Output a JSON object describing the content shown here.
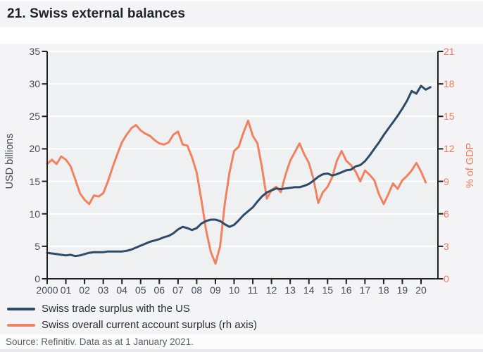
{
  "page": {
    "title": "21. Swiss external balances",
    "source": "Source: Refinitiv. Data as at 1 January 2021."
  },
  "colors": {
    "panel_bg": "#f4f4f6",
    "plot_bg": "#eff0f2",
    "gridline": "#ffffff",
    "axis": "#202023",
    "navy_series": "#2e4a69",
    "orange_series": "#f0825f",
    "left_tick_text": "#414b59",
    "right_tick_text": "#ef7c58",
    "title_text": "#1d222a",
    "source_text": "#5b6168"
  },
  "legend": [
    {
      "label": "Swiss trade surplus with the US",
      "color": "#2e4a69"
    },
    {
      "label": "Swiss overall current account surplus (rh axis)",
      "color": "#f0825f"
    }
  ],
  "chart_data": {
    "type": "line",
    "title": "21. Swiss external balances",
    "ylabel_left": "USD billions",
    "ylabel_right": "% of GDP",
    "grid": "horizontal-white-on-gray",
    "legend_position": "bottom-left",
    "y_left": {
      "min": 0,
      "max": 35,
      "ticks": [
        0,
        5,
        10,
        15,
        20,
        25,
        30,
        35
      ]
    },
    "y_right": {
      "min": 0,
      "max": 21,
      "ticks": [
        0,
        3,
        6,
        9,
        12,
        15,
        18,
        21
      ]
    },
    "x_axis": {
      "start_year": 2000,
      "end_year": 2020,
      "tick_labels": [
        "2000",
        "01",
        "02",
        "03",
        "04",
        "05",
        "06",
        "07",
        "08",
        "09",
        "10",
        "11",
        "12",
        "13",
        "14",
        "15",
        "16",
        "17",
        "18",
        "19",
        "20"
      ]
    },
    "series": [
      {
        "name": "Swiss trade surplus with the US",
        "axis": "left",
        "unit": "USD billions",
        "color": "#2e4a69",
        "x_start": 2000.0,
        "x_step": 0.25,
        "values": [
          4.0,
          3.9,
          3.8,
          3.7,
          3.6,
          3.7,
          3.5,
          3.6,
          3.8,
          4.0,
          4.1,
          4.1,
          4.1,
          4.2,
          4.2,
          4.2,
          4.2,
          4.3,
          4.5,
          4.8,
          5.1,
          5.4,
          5.7,
          5.9,
          6.1,
          6.4,
          6.6,
          7.0,
          7.6,
          8.0,
          7.8,
          7.5,
          7.8,
          8.5,
          8.9,
          9.1,
          9.1,
          8.9,
          8.4,
          8.0,
          8.3,
          9.0,
          9.8,
          10.4,
          11.0,
          11.9,
          12.7,
          13.3,
          13.6,
          13.9,
          13.8,
          13.9,
          14.0,
          14.1,
          14.1,
          14.3,
          14.6,
          15.1,
          15.7,
          16.1,
          16.2,
          15.9,
          16.1,
          16.4,
          16.7,
          16.8,
          17.3,
          17.5,
          18.1,
          19.0,
          20.0,
          21.0,
          22.1,
          23.1,
          24.1,
          25.1,
          26.2,
          27.4,
          28.9,
          28.5,
          29.7,
          29.1,
          29.5
        ]
      },
      {
        "name": "Swiss overall current account surplus (rh axis)",
        "axis": "right",
        "unit": "% of GDP",
        "color": "#f0825f",
        "x_start": 2000.0,
        "x_step": 0.25,
        "values": [
          10.6,
          11.0,
          10.6,
          11.3,
          11.0,
          10.4,
          9.2,
          7.9,
          7.3,
          6.9,
          7.7,
          7.6,
          7.9,
          9.0,
          10.3,
          11.5,
          12.6,
          13.3,
          13.9,
          14.2,
          13.7,
          13.4,
          13.2,
          12.8,
          12.5,
          12.4,
          12.6,
          13.3,
          13.6,
          12.4,
          12.3,
          11.2,
          9.8,
          7.3,
          4.5,
          2.5,
          1.4,
          3.0,
          6.9,
          9.8,
          11.8,
          12.2,
          13.5,
          14.6,
          13.2,
          12.5,
          10.2,
          7.4,
          8.2,
          8.5,
          8.0,
          9.6,
          10.9,
          11.7,
          12.5,
          11.5,
          10.7,
          9.2,
          7.0,
          8.0,
          8.5,
          9.4,
          10.9,
          11.8,
          10.9,
          10.5,
          9.9,
          9.0,
          10.0,
          9.6,
          9.1,
          7.8,
          6.9,
          7.8,
          8.8,
          8.3,
          9.1,
          9.5,
          10.0,
          10.7,
          9.9,
          8.9
        ]
      }
    ]
  }
}
